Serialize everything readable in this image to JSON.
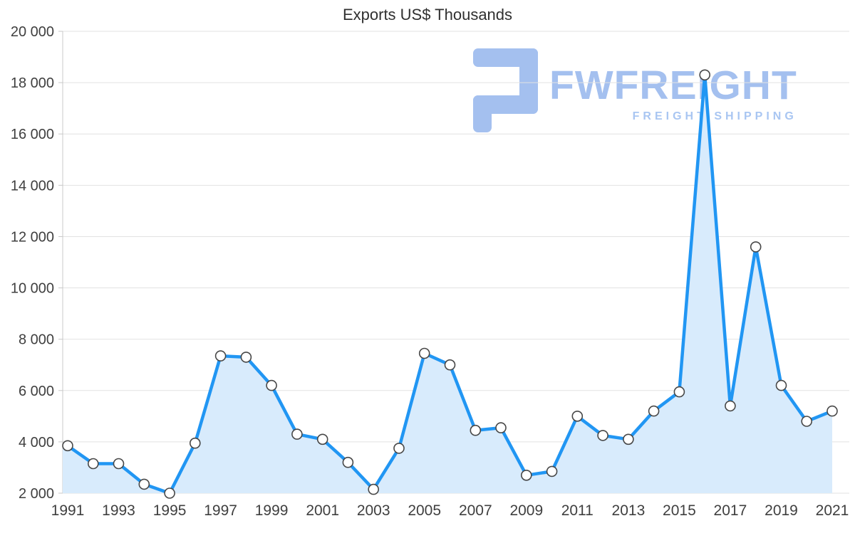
{
  "chart_data": {
    "type": "area",
    "title": "Exports US$ Thousands",
    "x": [
      1991,
      1992,
      1993,
      1994,
      1995,
      1996,
      1997,
      1998,
      1999,
      2000,
      2001,
      2002,
      2003,
      2004,
      2005,
      2006,
      2007,
      2008,
      2009,
      2010,
      2011,
      2012,
      2013,
      2014,
      2015,
      2016,
      2017,
      2018,
      2019,
      2020,
      2021
    ],
    "values": [
      3850,
      3150,
      3150,
      2350,
      2000,
      3950,
      7350,
      7300,
      6200,
      4300,
      4100,
      3200,
      2150,
      3750,
      7450,
      7000,
      4450,
      4550,
      2700,
      2850,
      5000,
      4250,
      4100,
      5200,
      5950,
      18300,
      5400,
      11600,
      6200,
      4800,
      5200
    ],
    "ylim": [
      2000,
      20000
    ],
    "ytick_step": 2000,
    "ytick_labels": [
      "2 000",
      "4 000",
      "6 000",
      "8 000",
      "10 000",
      "12 000",
      "14 000",
      "16 000",
      "18 000",
      "20 000"
    ],
    "xtick_labels": [
      "1991",
      "1993",
      "1995",
      "1997",
      "1999",
      "2001",
      "2003",
      "2005",
      "2007",
      "2009",
      "2011",
      "2013",
      "2015",
      "2017",
      "2019",
      "2021"
    ],
    "grid": true,
    "legend": "none",
    "xlabel": "",
    "ylabel": "",
    "colors": {
      "line": "#2196f3",
      "fill": "#d8ebfc",
      "marker_fill": "#ffffff",
      "marker_stroke": "#474747",
      "grid": "#e2e2e2",
      "axis": "#c8c8c8",
      "label": "#3f3f3f",
      "title": "#303030"
    }
  },
  "watermark": {
    "brand": "FWFREIGHT",
    "subtitle": "FREIGHT SHIPPING",
    "color": "#a4c0ef"
  }
}
